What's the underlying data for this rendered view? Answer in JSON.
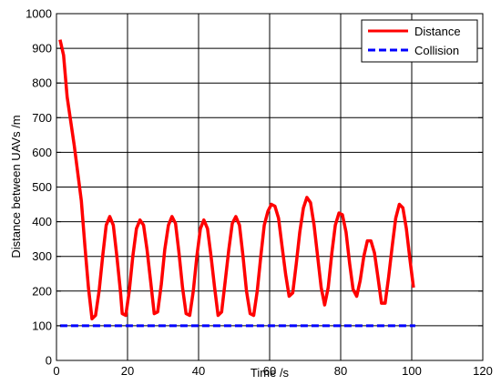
{
  "chart_data": {
    "type": "line",
    "xlabel": "Time /s",
    "ylabel": "Distance between UAVs /m",
    "xlim": [
      0,
      120
    ],
    "ylim": [
      0,
      1000
    ],
    "x_ticks": [
      0,
      20,
      40,
      60,
      80,
      100,
      120
    ],
    "y_ticks": [
      0,
      100,
      200,
      300,
      400,
      500,
      600,
      700,
      800,
      900,
      1000
    ],
    "grid": true,
    "legend_position": "top-right",
    "series": [
      {
        "name": "Distance",
        "color": "#ff0000",
        "style": "solid",
        "points": [
          [
            1,
            925
          ],
          [
            2,
            880
          ],
          [
            3,
            760
          ],
          [
            5,
            620
          ],
          [
            7,
            460
          ],
          [
            8,
            330
          ],
          [
            9,
            210
          ],
          [
            10,
            120
          ],
          [
            11,
            130
          ],
          [
            12,
            200
          ],
          [
            13,
            300
          ],
          [
            14,
            390
          ],
          [
            15,
            415
          ],
          [
            16,
            390
          ],
          [
            17,
            300
          ],
          [
            18,
            200
          ],
          [
            18.5,
            135
          ],
          [
            19.5,
            130
          ],
          [
            20.5,
            200
          ],
          [
            21.5,
            300
          ],
          [
            22.5,
            380
          ],
          [
            23.5,
            405
          ],
          [
            24.5,
            390
          ],
          [
            25.5,
            320
          ],
          [
            26.5,
            230
          ],
          [
            27.5,
            135
          ],
          [
            28.5,
            140
          ],
          [
            29.5,
            220
          ],
          [
            30.5,
            320
          ],
          [
            31.5,
            390
          ],
          [
            32.5,
            415
          ],
          [
            33.5,
            395
          ],
          [
            34.5,
            310
          ],
          [
            35.5,
            210
          ],
          [
            36.5,
            135
          ],
          [
            37.5,
            130
          ],
          [
            38.5,
            200
          ],
          [
            39.5,
            300
          ],
          [
            40.5,
            380
          ],
          [
            41.5,
            405
          ],
          [
            42.5,
            380
          ],
          [
            43.5,
            300
          ],
          [
            44.5,
            210
          ],
          [
            45.5,
            130
          ],
          [
            46.5,
            140
          ],
          [
            47.5,
            230
          ],
          [
            48.5,
            320
          ],
          [
            49.5,
            395
          ],
          [
            50.5,
            415
          ],
          [
            51.5,
            390
          ],
          [
            52.5,
            300
          ],
          [
            53.5,
            200
          ],
          [
            54.5,
            135
          ],
          [
            55.5,
            130
          ],
          [
            56.5,
            200
          ],
          [
            57.5,
            300
          ],
          [
            58.5,
            390
          ],
          [
            59.5,
            430
          ],
          [
            60.5,
            450
          ],
          [
            61.5,
            445
          ],
          [
            62.5,
            410
          ],
          [
            63.5,
            330
          ],
          [
            64.5,
            250
          ],
          [
            65.5,
            185
          ],
          [
            66.5,
            195
          ],
          [
            67.5,
            280
          ],
          [
            68.5,
            370
          ],
          [
            69.5,
            440
          ],
          [
            70.5,
            470
          ],
          [
            71.5,
            455
          ],
          [
            72.5,
            390
          ],
          [
            73.5,
            300
          ],
          [
            74.5,
            210
          ],
          [
            75.5,
            160
          ],
          [
            76.5,
            210
          ],
          [
            77.5,
            310
          ],
          [
            78.5,
            390
          ],
          [
            79.5,
            425
          ],
          [
            80.5,
            420
          ],
          [
            81.5,
            370
          ],
          [
            82.5,
            280
          ],
          [
            83.5,
            205
          ],
          [
            84.5,
            185
          ],
          [
            85.5,
            230
          ],
          [
            86.5,
            300
          ],
          [
            87.5,
            345
          ],
          [
            88.5,
            345
          ],
          [
            89.5,
            310
          ],
          [
            90.5,
            240
          ],
          [
            91.5,
            165
          ],
          [
            92.5,
            165
          ],
          [
            93.5,
            240
          ],
          [
            94.5,
            330
          ],
          [
            95.5,
            410
          ],
          [
            96.5,
            450
          ],
          [
            97.5,
            440
          ],
          [
            98.5,
            380
          ],
          [
            99.5,
            290
          ],
          [
            100.5,
            210
          ]
        ]
      },
      {
        "name": "Collision",
        "color": "#0000ff",
        "style": "dashed",
        "points": [
          [
            1,
            100
          ],
          [
            101,
            100
          ]
        ]
      }
    ]
  }
}
